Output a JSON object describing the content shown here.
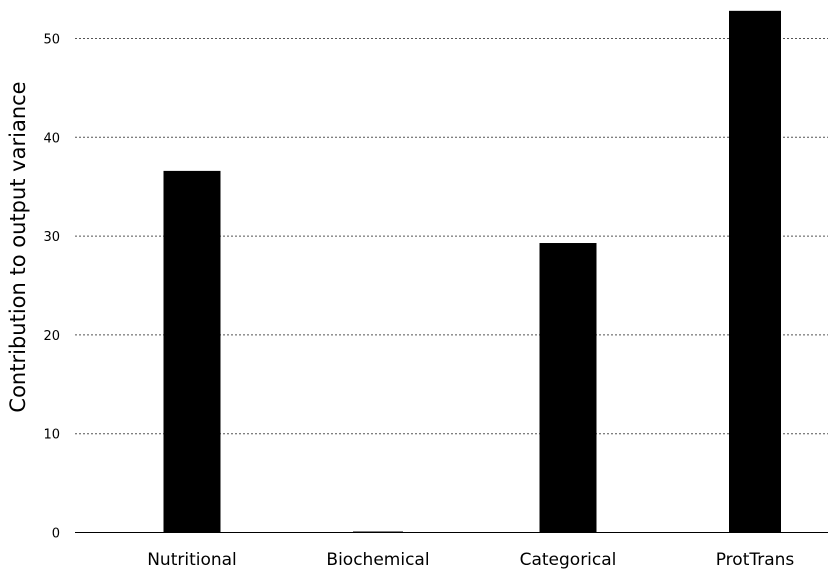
{
  "chart_data": {
    "type": "bar",
    "title": "",
    "xlabel": "",
    "ylabel": "Contribution to output variance",
    "categories": [
      "Nutritional",
      "Biochemical",
      "Categorical",
      "ProtTrans"
    ],
    "values": [
      36.6,
      0.05,
      29.3,
      52.8
    ],
    "ylim": [
      0,
      55
    ],
    "yticks": [
      "0",
      "10",
      "20",
      "30",
      "40",
      "50"
    ],
    "grid": "horizontal dotted",
    "bar_color": "#000000",
    "grid_color": "#555555"
  }
}
